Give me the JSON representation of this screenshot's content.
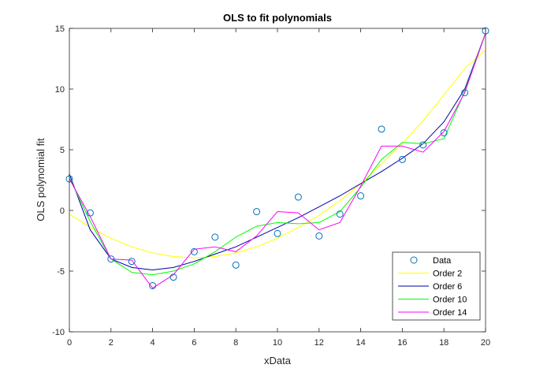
{
  "chart_data": {
    "type": "line",
    "title": "OLS to fit polynomials",
    "xlabel": "xData",
    "ylabel": "OLS polynomial fit",
    "xlim": [
      0,
      20
    ],
    "ylim": [
      -10,
      15
    ],
    "xticks": [
      0,
      2,
      4,
      6,
      8,
      10,
      12,
      14,
      16,
      18,
      20
    ],
    "yticks": [
      -10,
      -5,
      0,
      5,
      10,
      15
    ],
    "grid": false,
    "legend_position": "bottom-right",
    "legend": [
      "Data",
      "Order 2",
      "Order 6",
      "Order 10",
      "Order 14"
    ],
    "scatter": {
      "name": "Data",
      "color": "#0072BD",
      "marker": "circle",
      "x": [
        0,
        1,
        2,
        3,
        4,
        5,
        6,
        7,
        8,
        9,
        10,
        11,
        12,
        13,
        14,
        15,
        16,
        17,
        18,
        19,
        20
      ],
      "y": [
        2.6,
        -0.2,
        -4.0,
        -4.2,
        -6.2,
        -5.5,
        -3.4,
        -2.2,
        -4.5,
        -0.1,
        -1.9,
        1.1,
        -2.1,
        -0.3,
        1.2,
        6.7,
        4.2,
        5.4,
        6.4,
        9.7,
        14.8
      ]
    },
    "series": [
      {
        "name": "Order 2",
        "color": "#FFFF00",
        "x": [
          0,
          1,
          2,
          3,
          4,
          5,
          6,
          7,
          8,
          9,
          10,
          11,
          12,
          13,
          14,
          15,
          16,
          17,
          18,
          19,
          20
        ],
        "y": [
          -0.3,
          -1.4,
          -2.3,
          -3.0,
          -3.5,
          -3.8,
          -3.9,
          -3.8,
          -3.5,
          -3.0,
          -2.3,
          -1.4,
          -0.4,
          0.8,
          2.2,
          3.8,
          5.5,
          7.4,
          9.5,
          11.7,
          13.2
        ]
      },
      {
        "name": "Order 6",
        "color": "#0000AA",
        "x": [
          0,
          1,
          2,
          3,
          4,
          5,
          6,
          7,
          8,
          9,
          10,
          11,
          12,
          13,
          14,
          15,
          16,
          17,
          18,
          19,
          20
        ],
        "y": [
          3.0,
          -1.6,
          -4.0,
          -4.7,
          -4.9,
          -4.7,
          -4.2,
          -3.6,
          -3.0,
          -2.2,
          -1.4,
          -0.6,
          0.3,
          1.2,
          2.2,
          3.2,
          4.3,
          5.5,
          7.3,
          10.0,
          14.6
        ]
      },
      {
        "name": "Order 10",
        "color": "#00FF00",
        "x": [
          0,
          1,
          2,
          3,
          4,
          5,
          6,
          7,
          8,
          9,
          10,
          11,
          12,
          13,
          14,
          15,
          16,
          17,
          18,
          19,
          20
        ],
        "y": [
          2.7,
          -0.9,
          -4.0,
          -5.1,
          -5.3,
          -5.0,
          -4.4,
          -3.4,
          -2.2,
          -1.3,
          -1.0,
          -1.1,
          -1.0,
          -0.1,
          1.9,
          4.2,
          5.6,
          5.5,
          5.9,
          9.8,
          14.6
        ]
      },
      {
        "name": "Order 14",
        "color": "#FF00FF",
        "x": [
          0,
          1,
          2,
          3,
          4,
          5,
          6,
          7,
          8,
          9,
          10,
          11,
          12,
          13,
          14,
          15,
          16,
          17,
          18,
          19,
          20
        ],
        "y": [
          2.6,
          -0.5,
          -4.0,
          -4.1,
          -6.4,
          -5.3,
          -3.2,
          -3.0,
          -3.4,
          -2.1,
          -0.1,
          -0.2,
          -1.6,
          -1.0,
          2.0,
          5.3,
          5.3,
          4.8,
          6.5,
          9.7,
          14.6
        ]
      }
    ]
  }
}
